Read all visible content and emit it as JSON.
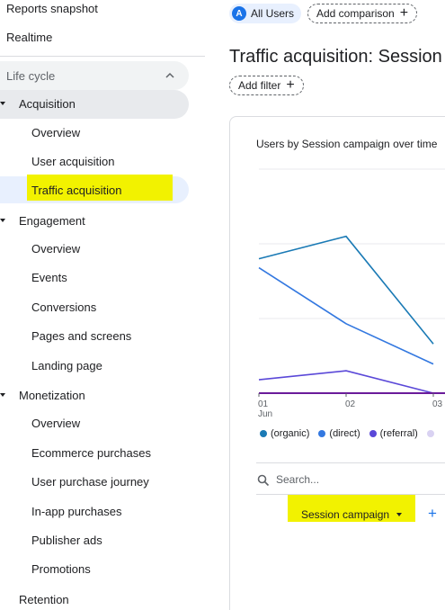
{
  "sidebar": {
    "top_items": [
      "Reports snapshot",
      "Realtime"
    ],
    "section_label": "Life cycle",
    "groups": [
      {
        "label": "Acquisition",
        "items": [
          "Overview",
          "User acquisition",
          "Traffic acquisition"
        ]
      },
      {
        "label": "Engagement",
        "items": [
          "Overview",
          "Events",
          "Conversions",
          "Pages and screens",
          "Landing page"
        ]
      },
      {
        "label": "Monetization",
        "items": [
          "Overview",
          "Ecommerce purchases",
          "User purchase journey",
          "In-app purchases",
          "Publisher ads",
          "Promotions"
        ]
      },
      {
        "label": "Retention",
        "items": []
      }
    ]
  },
  "header": {
    "segment_letter": "A",
    "segment_label": "All Users",
    "add_comparison_label": "Add comparison"
  },
  "page": {
    "title": "Traffic acquisition: Session c",
    "add_filter_label": "Add filter"
  },
  "card": {
    "title": "Users by Session campaign over time",
    "search_placeholder": "Search...",
    "dimension_label": "Session campaign"
  },
  "colors": {
    "organic": "#1a7ab5",
    "direct": "#3378e0",
    "referral": "#5a48d8",
    "unassigned": "#d9d2f2",
    "baseline": "#6a1b9a",
    "highlight": "#f2f200"
  },
  "chart_data": {
    "type": "line",
    "title": "Users by Session campaign over time",
    "categories": [
      "01\nJun",
      "02",
      "03"
    ],
    "x_tick_labels": [
      "01",
      "02",
      "03"
    ],
    "x_sub_label": "Jun",
    "ylim": [
      0,
      100
    ],
    "grid": true,
    "legend_position": "bottom",
    "series": [
      {
        "name": "(organic)",
        "values": [
          60,
          70,
          22
        ]
      },
      {
        "name": "(direct)",
        "values": [
          56,
          31,
          13
        ]
      },
      {
        "name": "(referral)",
        "values": [
          6,
          10,
          0
        ]
      },
      {
        "name": "",
        "values": [
          0,
          0,
          0
        ]
      }
    ]
  }
}
